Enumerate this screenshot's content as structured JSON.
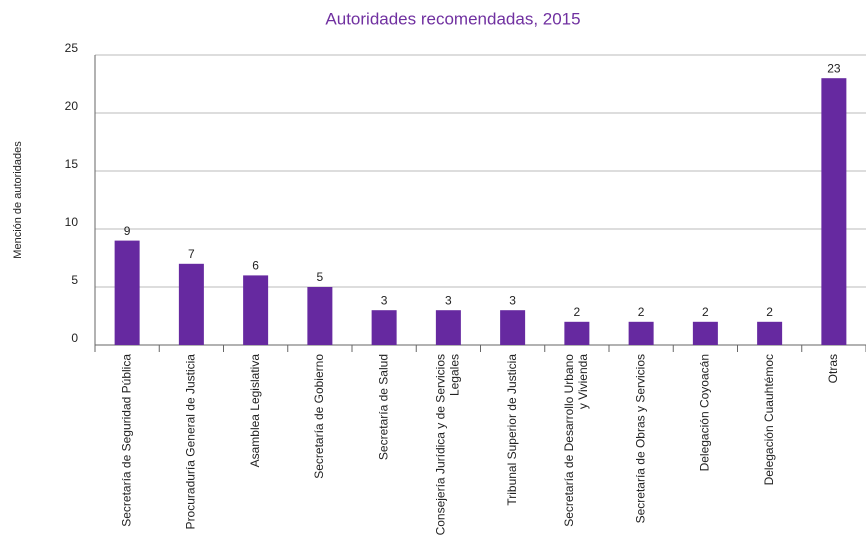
{
  "chart_data": {
    "type": "bar",
    "title": "Autoridades recomendadas, 2015",
    "y_label": "Mención de autoridades",
    "categories": [
      "Secretaría de Seguridad Pública",
      "Procuraduría General de Justicia",
      "Asamblea Legislativa",
      "Secretaría de Gobierno",
      "Secretaría de Salud",
      "Consejería Jurídica y de Servicios\nLegales",
      "Tribunal Superior de Justicia",
      "Secretaría de Desarrollo Urbano\ny Vivienda",
      "Secretaría de Obras y Servicios",
      "Delegación Coyoacán",
      "Delegación Cuauhtémoc",
      "Otras"
    ],
    "values": [
      9,
      7,
      6,
      5,
      3,
      3,
      3,
      2,
      2,
      2,
      2,
      23
    ],
    "color": "#6629a0",
    "ylim": [
      0,
      25
    ],
    "yticks": [
      0,
      5,
      10,
      15,
      20,
      25
    ],
    "grid": true
  }
}
